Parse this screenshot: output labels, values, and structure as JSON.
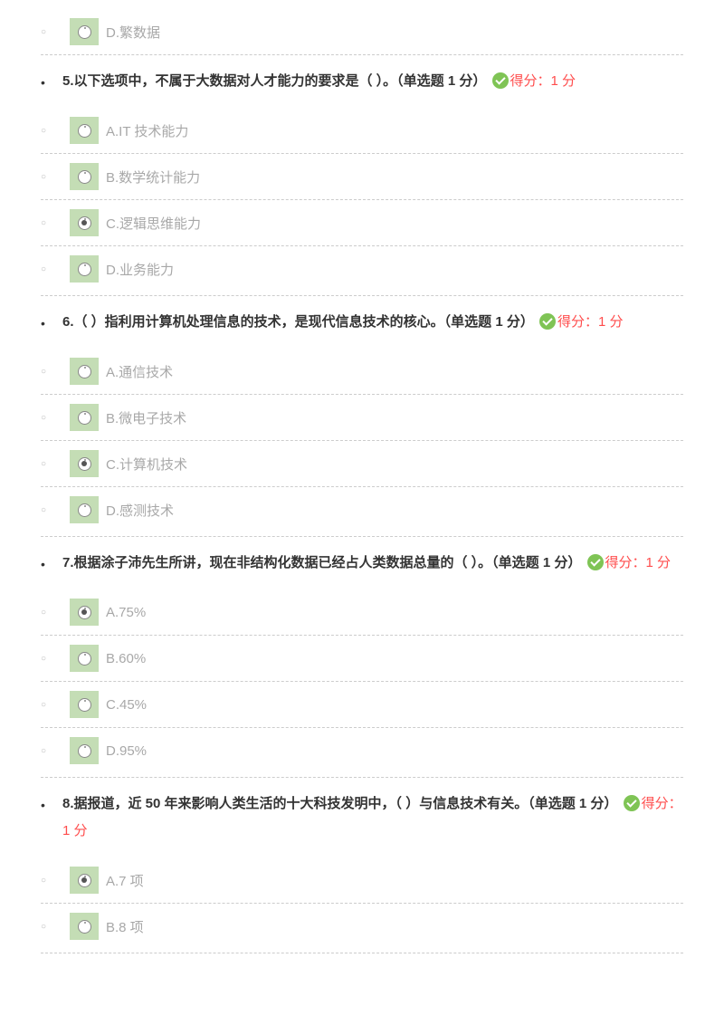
{
  "orphan": {
    "label": "D.繁数据",
    "selected": false
  },
  "questions": [
    {
      "number": "5.",
      "text": "以下选项中，不属于大数据对人才能力的要求是（   ）。（单选题 1 分）",
      "score": "得分：1 分",
      "options": [
        {
          "label": "A.IT 技术能力",
          "selected": false
        },
        {
          "label": "B.数学统计能力",
          "selected": false
        },
        {
          "label": "C.逻辑思维能力",
          "selected": true
        },
        {
          "label": "D.业务能力",
          "selected": false
        }
      ]
    },
    {
      "number": "6.",
      "text": "（ ）指利用计算机处理信息的技术，是现代信息技术的核心。（单选题 1 分）",
      "score": "得分：1 分",
      "options": [
        {
          "label": "A.通信技术",
          "selected": false
        },
        {
          "label": "B.微电子技术",
          "selected": false
        },
        {
          "label": "C.计算机技术",
          "selected": true
        },
        {
          "label": "D.感测技术",
          "selected": false
        }
      ]
    },
    {
      "number": "7.",
      "text": "根据涂子沛先生所讲，现在非结构化数据已经占人类数据总量的（ ）。（单选题 1 分）",
      "score": "得分：1 分",
      "options": [
        {
          "label": "A.75%",
          "selected": true
        },
        {
          "label": "B.60%",
          "selected": false
        },
        {
          "label": "C.45%",
          "selected": false
        },
        {
          "label": "D.95%",
          "selected": false
        }
      ]
    },
    {
      "number": "8.",
      "text": "据报道，近 50 年来影响人类生活的十大科技发明中，（ ）与信息技术有关。（单选题 1 分）",
      "score": "得分：1 分",
      "options": [
        {
          "label": "A.7 项",
          "selected": true
        },
        {
          "label": "B.8 项",
          "selected": false
        }
      ]
    }
  ]
}
